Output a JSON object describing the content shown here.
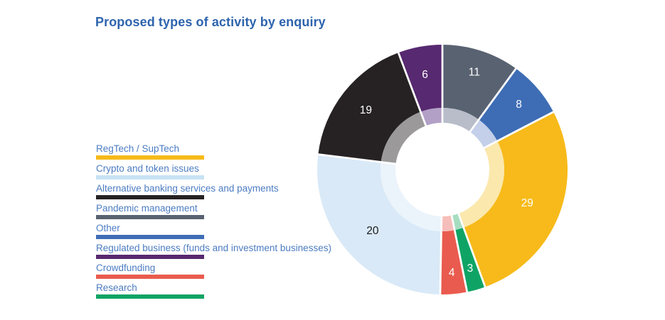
{
  "title": "Proposed types of activity by enquiry",
  "colors": {
    "background": "#FFFFFF",
    "title_text": "#2E64AE",
    "legend_text": "#4C7CC2",
    "separator": "#FFFFFF"
  },
  "legend": {
    "items": [
      {
        "key": "regtech-suptech",
        "label": "RegTech / SupTech",
        "color": "#F7BA1A"
      },
      {
        "key": "crypto-token-issues",
        "label": "Crypto and token issues",
        "color": "#C7E2F4"
      },
      {
        "key": "alternative-banking",
        "label": "Alternative banking services and payments",
        "color": "#262223"
      },
      {
        "key": "pandemic-management",
        "label": "Pandemic management",
        "color": "#596271"
      },
      {
        "key": "other",
        "label": "Other",
        "color": "#3E6DB5"
      },
      {
        "key": "regulated-business",
        "label": "Regulated business  (funds and investment businesses)",
        "color": "#572970"
      },
      {
        "key": "crowdfunding",
        "label": "Crowdfunding",
        "color": "#E95B4E"
      },
      {
        "key": "research",
        "label": "Research",
        "color": "#0FA465"
      }
    ]
  },
  "chart_data": {
    "type": "pie",
    "variant": "donut-with-faded-inner-ring",
    "title": "Proposed types of activity by enquiry",
    "legend_position": "left",
    "total": 100,
    "categories": [
      "Pandemic management",
      "Other",
      "RegTech / SupTech",
      "Research",
      "Crowdfunding",
      "Crypto and token issues",
      "Alternative banking services and payments",
      "Regulated business  (funds and investment businesses)"
    ],
    "values": [
      11,
      8,
      29,
      3,
      4,
      20,
      19,
      6
    ],
    "segments": [
      {
        "key": "pandemic-management",
        "label": "Pandemic management",
        "value": 11,
        "value_label": "11",
        "color": "#596271",
        "inner_color": "#B8BDC9",
        "value_label_color": "#FFFFFF",
        "start_deg": 0,
        "end_deg": 36,
        "label_radius": 145
      },
      {
        "key": "other",
        "label": "Other",
        "value": 8,
        "value_label": "8",
        "color": "#3E6DB5",
        "inner_color": "#C4CFE9",
        "value_label_color": "#FFFFFF",
        "start_deg": 36,
        "end_deg": 62.5,
        "label_radius": 142
      },
      {
        "key": "regtech-suptech",
        "label": "RegTech / SupTech",
        "value": 29,
        "value_label": "29",
        "color": "#F7BA1A",
        "inner_color": "#FBE8AD",
        "value_label_color": "#FFFFFF",
        "start_deg": 62.5,
        "end_deg": 160,
        "label_radius": 128
      },
      {
        "key": "research",
        "label": "Research",
        "value": 3,
        "value_label": "3",
        "color": "#0FA465",
        "inner_color": "#A6DDC0",
        "value_label_color": "#FFFFFF",
        "start_deg": 160,
        "end_deg": 168.6,
        "label_radius": 144
      },
      {
        "key": "crowdfunding",
        "label": "Crowdfunding",
        "value": 4,
        "value_label": "4",
        "color": "#E95B4E",
        "inner_color": "#F6BEBA",
        "value_label_color": "#FFFFFF",
        "start_deg": 168.6,
        "end_deg": 181,
        "label_radius": 145
      },
      {
        "key": "crypto-token-issues",
        "label": "Crypto and token issues",
        "value": 20,
        "value_label": "20",
        "color": "#D9E9F7",
        "inner_color": "#EBF3FB",
        "value_label_color": "#1A1A1A",
        "start_deg": 181,
        "end_deg": 277,
        "label_radius": 130
      },
      {
        "key": "alternative-banking",
        "label": "Alternative banking services and payments",
        "value": 19,
        "value_label": "19",
        "color": "#262223",
        "inner_color": "#9B999A",
        "value_label_color": "#FFFFFF",
        "start_deg": 277,
        "end_deg": 339.4,
        "label_radius": 137
      },
      {
        "key": "regulated-business",
        "label": "Regulated business  (funds and investment businesses)",
        "value": 6,
        "value_label": "6",
        "color": "#572970",
        "inner_color": "#B2A0C6",
        "value_label_color": "#FFFFFF",
        "start_deg": 339.4,
        "end_deg": 360,
        "label_radius": 137
      }
    ]
  }
}
